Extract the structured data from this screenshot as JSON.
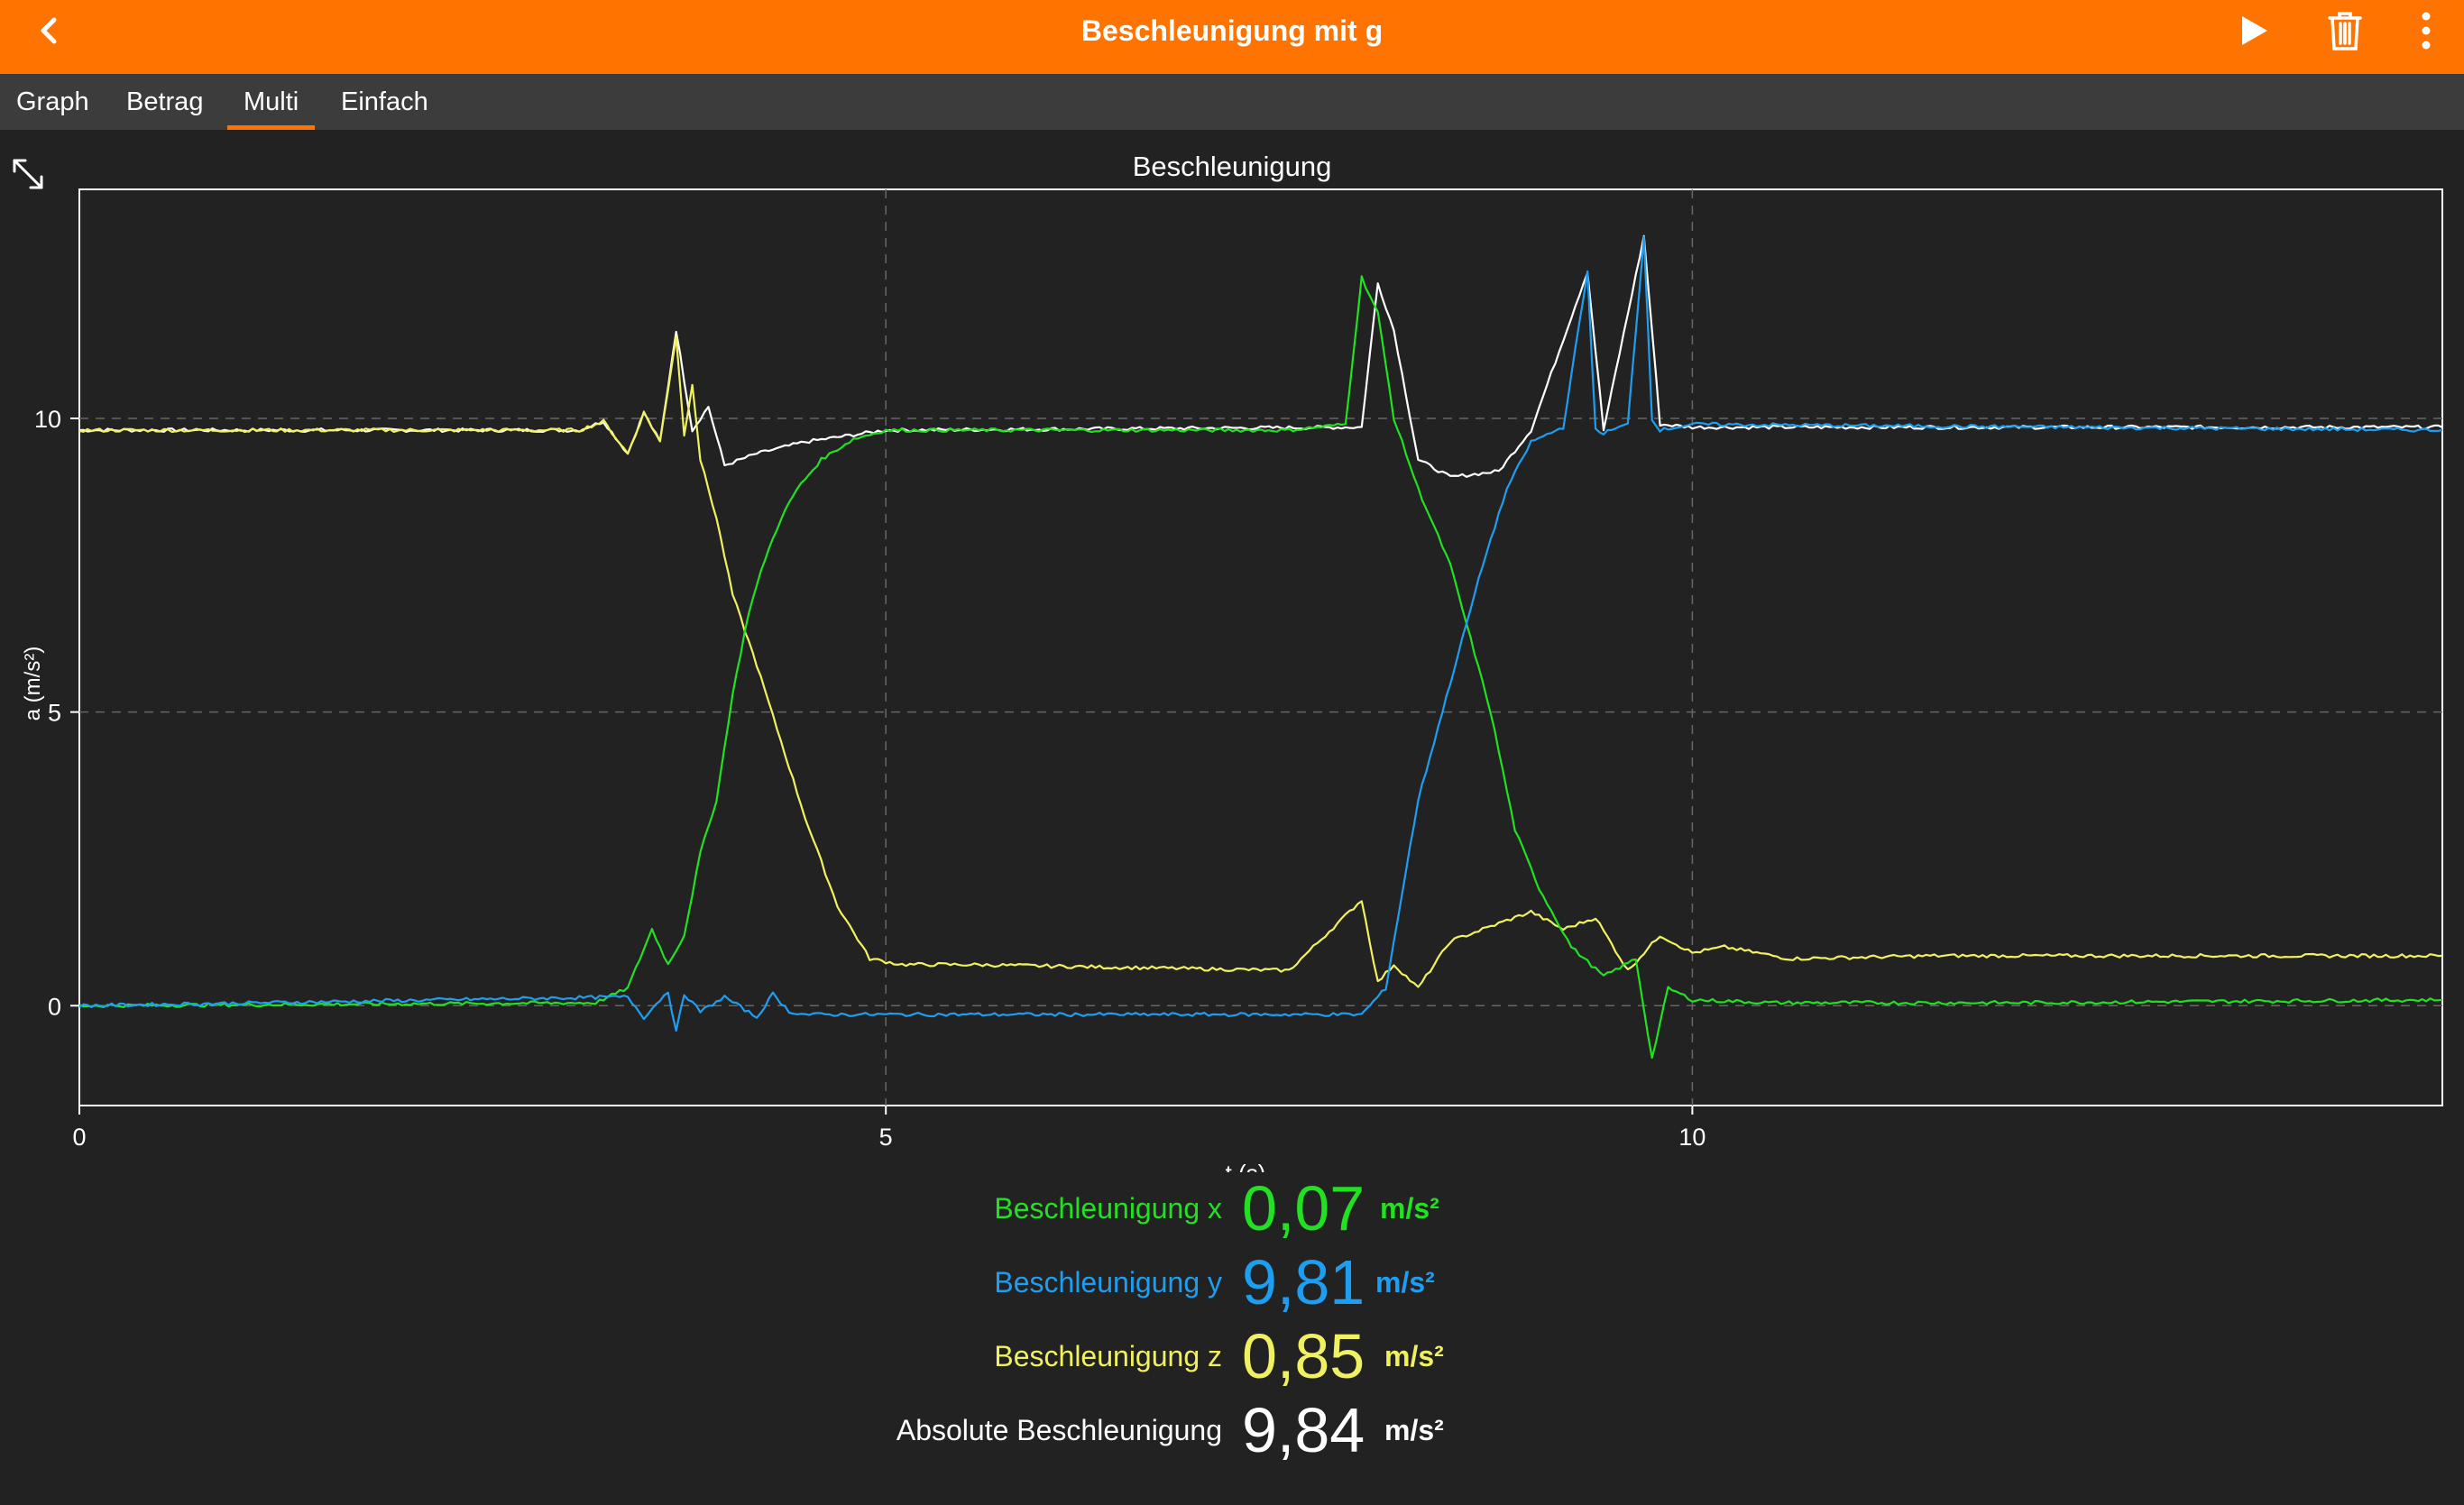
{
  "header": {
    "title": "Beschleunigung mit g",
    "back_icon": "chevron-left-icon",
    "play_icon": "play-icon",
    "trash_icon": "trash-icon",
    "more_icon": "more-vertical-icon",
    "accent_color": "#ff7300"
  },
  "tabs": [
    {
      "label": "Graph",
      "active": false
    },
    {
      "label": "Betrag",
      "active": false
    },
    {
      "label": "Multi",
      "active": true
    },
    {
      "label": "Einfach",
      "active": false
    }
  ],
  "expand_icon": "expand-icon",
  "chart_title": "Beschleunigung",
  "chart_data": {
    "type": "line",
    "title": "Beschleunigung",
    "xlabel": "t (s)",
    "ylabel": "a (m/s²)",
    "xlim": [
      0,
      14.65
    ],
    "ylim": [
      -1.7,
      13.9
    ],
    "xticks": [
      "0",
      "5",
      "10"
    ],
    "yticks": [
      "0",
      "5",
      "10"
    ],
    "grid": true,
    "series": [
      {
        "name": "Beschleunigung x",
        "color": "#22e022",
        "x": [
          0,
          3.2,
          3.4,
          3.55,
          3.65,
          3.75,
          3.85,
          3.95,
          4.05,
          4.15,
          4.25,
          4.35,
          4.45,
          4.6,
          4.8,
          5.0,
          5.5,
          7.5,
          7.85,
          7.95,
          8.05,
          8.15,
          8.3,
          8.5,
          8.75,
          8.9,
          9.05,
          9.25,
          9.45,
          9.65,
          9.75,
          9.85,
          10.0,
          10.5,
          12.0,
          14.65
        ],
        "y": [
          0.0,
          0.05,
          0.3,
          1.3,
          0.7,
          1.2,
          2.6,
          3.5,
          5.3,
          6.7,
          7.6,
          8.3,
          8.8,
          9.3,
          9.65,
          9.8,
          9.8,
          9.8,
          9.9,
          12.4,
          11.8,
          10.0,
          8.8,
          7.5,
          5.0,
          3.0,
          2.0,
          1.0,
          0.5,
          0.8,
          -0.9,
          0.3,
          0.1,
          0.05,
          0.05,
          0.1
        ]
      },
      {
        "name": "Beschleunigung y",
        "color": "#1e9ef0",
        "x": [
          0,
          3.4,
          3.5,
          3.65,
          3.7,
          3.75,
          3.85,
          4.0,
          4.2,
          4.3,
          4.4,
          4.5,
          5.0,
          7.95,
          8.1,
          8.3,
          8.5,
          8.7,
          8.85,
          9.0,
          9.2,
          9.35,
          9.4,
          9.45,
          9.6,
          9.7,
          9.75,
          9.8,
          10.0,
          14.65
        ],
        "y": [
          0.0,
          0.15,
          -0.2,
          0.25,
          -0.45,
          0.2,
          -0.1,
          0.15,
          -0.2,
          0.2,
          -0.1,
          -0.15,
          -0.15,
          -0.15,
          0.3,
          3.5,
          5.5,
          7.5,
          8.8,
          9.6,
          9.85,
          12.5,
          9.8,
          9.75,
          9.9,
          13.1,
          10.0,
          9.8,
          9.9,
          9.8
        ]
      },
      {
        "name": "Beschleunigung z",
        "color": "#f0f060",
        "x": [
          0,
          3.1,
          3.25,
          3.4,
          3.5,
          3.6,
          3.7,
          3.75,
          3.8,
          3.85,
          3.95,
          4.05,
          4.2,
          4.35,
          4.5,
          4.7,
          4.9,
          5.1,
          5.5,
          7.5,
          7.95,
          8.05,
          8.15,
          8.3,
          8.5,
          8.8,
          9.0,
          9.2,
          9.4,
          9.6,
          9.8,
          10.0,
          10.2,
          10.6,
          11.5,
          12.5,
          14.65
        ],
        "y": [
          9.8,
          9.8,
          9.95,
          9.4,
          10.1,
          9.6,
          11.4,
          9.7,
          10.6,
          9.3,
          8.3,
          7.0,
          5.8,
          4.5,
          3.2,
          1.7,
          0.8,
          0.7,
          0.7,
          0.6,
          1.8,
          0.4,
          0.7,
          0.3,
          1.1,
          1.4,
          1.6,
          1.3,
          1.5,
          0.6,
          1.2,
          0.9,
          1.0,
          0.8,
          0.85,
          0.85,
          0.85
        ]
      },
      {
        "name": "Absolute Beschleunigung",
        "color": "#ffffff",
        "x": [
          0,
          3.1,
          3.25,
          3.4,
          3.5,
          3.6,
          3.7,
          3.8,
          3.9,
          4.0,
          4.2,
          4.5,
          5.0,
          7.95,
          8.05,
          8.15,
          8.3,
          8.5,
          8.8,
          9.0,
          9.35,
          9.45,
          9.7,
          9.8,
          10.0,
          14.65
        ],
        "y": [
          9.8,
          9.8,
          9.95,
          9.4,
          10.1,
          9.6,
          11.5,
          9.8,
          10.2,
          9.2,
          9.4,
          9.6,
          9.8,
          9.85,
          12.3,
          11.5,
          9.3,
          9.0,
          9.1,
          9.8,
          12.5,
          9.8,
          13.1,
          9.9,
          9.85,
          9.85
        ]
      }
    ]
  },
  "readouts": [
    {
      "label": "Beschleunigung x",
      "value": "0,07",
      "unit": "m/s²",
      "color": "#22e022"
    },
    {
      "label": "Beschleunigung y",
      "value": "9,81",
      "unit": "m/s²",
      "color": "#1e9ef0"
    },
    {
      "label": "Beschleunigung z",
      "value": "0,85",
      "unit": "m/s²",
      "color": "#f0f060"
    },
    {
      "label": "Absolute Beschleunigung",
      "value": "9,84",
      "unit": "m/s²",
      "color": "#ffffff"
    }
  ]
}
